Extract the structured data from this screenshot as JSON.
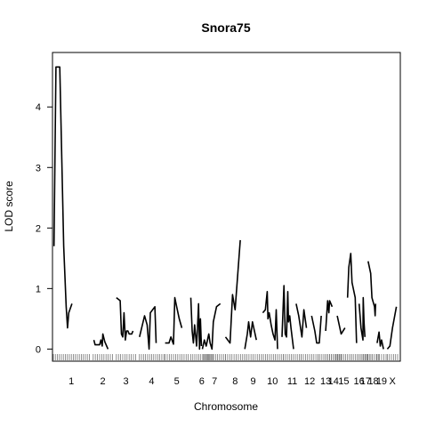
{
  "chart_data": {
    "type": "line",
    "title": "Snora75",
    "xlabel": "Chromosome",
    "ylabel": "LOD score",
    "ylim": [
      -0.2,
      4.9
    ],
    "yticks": [
      0,
      1,
      2,
      3,
      4
    ],
    "grid": false,
    "legend": "none",
    "line_color": "#000000",
    "chromosomes": [
      {
        "label": "1",
        "start": 0,
        "end": 28,
        "points": [
          [
            0.5,
            1.7
          ],
          [
            2,
            4.66
          ],
          [
            5,
            4.66
          ],
          [
            8,
            1.7
          ],
          [
            10,
            0.7
          ],
          [
            11,
            0.35
          ],
          [
            12,
            0.6
          ],
          [
            14.5,
            0.75
          ]
        ]
      },
      {
        "label": "2",
        "start": 31,
        "end": 46,
        "points": [
          [
            31.5,
            0.15
          ],
          [
            32.5,
            0.07
          ],
          [
            34,
            0.07
          ],
          [
            36,
            0.07
          ],
          [
            37,
            0.15
          ],
          [
            38,
            0.05
          ],
          [
            38.5,
            0.25
          ],
          [
            40,
            0.12
          ],
          [
            41.5,
            0.05
          ],
          [
            42.5,
            0.0
          ]
        ]
      },
      {
        "label": "3",
        "start": 49,
        "end": 64,
        "points": [
          [
            49,
            0.85
          ],
          [
            52,
            0.8
          ],
          [
            53,
            0.25
          ],
          [
            54,
            0.2
          ],
          [
            55,
            0.6
          ],
          [
            56,
            0.15
          ],
          [
            57,
            0.3
          ],
          [
            58,
            0.3
          ],
          [
            59,
            0.25
          ],
          [
            61,
            0.25
          ],
          [
            62,
            0.3
          ]
        ]
      },
      {
        "label": "4",
        "start": 67,
        "end": 86,
        "points": [
          [
            67,
            0.2
          ],
          [
            71,
            0.55
          ],
          [
            73,
            0.4
          ],
          [
            74.5,
            0.0
          ],
          [
            75.5,
            0.6
          ],
          [
            79,
            0.7
          ],
          [
            80,
            0.1
          ]
        ]
      },
      {
        "label": "5",
        "start": 87,
        "end": 105,
        "points": [
          [
            87,
            0.1
          ],
          [
            90,
            0.1
          ],
          [
            91.5,
            0.2
          ],
          [
            93.5,
            0.08
          ],
          [
            94.5,
            0.85
          ],
          [
            96,
            0.7
          ],
          [
            98,
            0.5
          ],
          [
            100,
            0.35
          ]
        ]
      },
      {
        "label": "6",
        "start": 107,
        "end": 124,
        "points": [
          [
            107,
            0.85
          ],
          [
            108,
            0.3
          ],
          [
            109,
            0.1
          ],
          [
            110,
            0.4
          ],
          [
            111.5,
            0.05
          ],
          [
            112,
            0.25
          ],
          [
            113,
            0.75
          ],
          [
            113.8,
            0.0
          ],
          [
            114.5,
            0.5
          ],
          [
            115.2,
            0.05
          ]
        ]
      },
      {
        "label": "7",
        "start": 117,
        "end": 134,
        "points": [
          [
            116,
            0.0
          ],
          [
            117.5,
            0.15
          ],
          [
            119,
            0.05
          ],
          [
            121,
            0.25
          ],
          [
            122,
            0.1
          ],
          [
            123.5,
            0.0
          ],
          [
            124.5,
            0.45
          ],
          [
            127,
            0.7
          ],
          [
            130,
            0.75
          ]
        ]
      },
      {
        "label": "8",
        "start": 134,
        "end": 149,
        "points": [
          [
            134,
            0.2
          ],
          [
            137.5,
            0.1
          ],
          [
            139.5,
            0.9
          ],
          [
            141.5,
            0.65
          ],
          [
            145.5,
            1.8
          ]
        ]
      },
      {
        "label": "9",
        "start": 149,
        "end": 162,
        "points": [
          [
            149,
            0.0
          ],
          [
            151,
            0.25
          ],
          [
            152,
            0.45
          ],
          [
            153.5,
            0.2
          ],
          [
            155,
            0.45
          ],
          [
            158,
            0.15
          ]
        ]
      },
      {
        "label": "10",
        "start": 162,
        "end": 179,
        "points": [
          [
            163,
            0.6
          ],
          [
            165,
            0.65
          ],
          [
            166.5,
            0.95
          ],
          [
            167,
            0.5
          ],
          [
            168,
            0.6
          ],
          [
            169.5,
            0.4
          ],
          [
            171,
            0.25
          ],
          [
            172.5,
            0.15
          ],
          [
            173.5,
            0.65
          ],
          [
            174.5,
            0.0
          ]
        ]
      },
      {
        "label": "11",
        "start": 179,
        "end": 193,
        "points": [
          [
            178,
            0.2
          ],
          [
            179.5,
            1.05
          ],
          [
            180.5,
            0.25
          ],
          [
            181.5,
            0.2
          ],
          [
            182.5,
            0.95
          ],
          [
            183,
            0.45
          ],
          [
            184,
            0.55
          ],
          [
            185,
            0.35
          ],
          [
            187,
            0.0
          ]
        ]
      },
      {
        "label": "12",
        "start": 193,
        "end": 206,
        "points": [
          [
            189,
            0.75
          ],
          [
            191,
            0.55
          ],
          [
            193.5,
            0.2
          ],
          [
            195,
            0.65
          ],
          [
            197,
            0.35
          ]
        ]
      },
      {
        "label": "13",
        "start": 206,
        "end": 218,
        "points": [
          [
            201,
            0.55
          ],
          [
            203.5,
            0.3
          ],
          [
            205,
            0.1
          ],
          [
            207,
            0.1
          ],
          [
            208.5,
            0.55
          ]
        ]
      },
      {
        "label": "14",
        "start": 212,
        "end": 224,
        "points": [
          [
            212,
            0.3
          ],
          [
            213.5,
            0.8
          ],
          [
            214.5,
            0.6
          ],
          [
            215,
            0.8
          ],
          [
            217,
            0.7
          ]
        ]
      },
      {
        "label": "15",
        "start": 220,
        "end": 232,
        "points": [
          [
            221,
            0.55
          ],
          [
            224,
            0.25
          ],
          [
            227,
            0.35
          ]
        ]
      },
      {
        "label": "16",
        "start": 232,
        "end": 244,
        "points": [
          [
            229,
            0.85
          ],
          [
            230,
            1.35
          ],
          [
            231.5,
            1.58
          ],
          [
            232.5,
            1.1
          ],
          [
            235,
            0.85
          ],
          [
            236,
            0.1
          ]
        ]
      },
      {
        "label": "17",
        "start": 238,
        "end": 248,
        "points": [
          [
            238,
            0.75
          ],
          [
            239.5,
            0.35
          ],
          [
            241,
            0.15
          ],
          [
            241.2,
            0.85
          ],
          [
            241.8,
            0.45
          ],
          [
            242.5,
            0.2
          ]
        ]
      },
      {
        "label": "18",
        "start": 245,
        "end": 253,
        "points": [
          [
            245,
            1.45
          ],
          [
            247,
            1.25
          ],
          [
            248,
            0.85
          ],
          [
            250,
            0.7
          ],
          [
            250.5,
            0.55
          ],
          [
            250.8,
            0.75
          ]
        ]
      },
      {
        "label": "19",
        "start": 252,
        "end": 259,
        "points": [
          [
            252,
            0.1
          ],
          [
            253.5,
            0.28
          ],
          [
            254.5,
            0.05
          ],
          [
            255.5,
            0.15
          ],
          [
            257,
            0.0
          ]
        ]
      },
      {
        "label": "X",
        "start": 260,
        "end": 268,
        "points": [
          [
            260,
            0.0
          ],
          [
            262,
            0.05
          ],
          [
            264,
            0.35
          ],
          [
            267,
            0.7
          ]
        ]
      }
    ]
  }
}
